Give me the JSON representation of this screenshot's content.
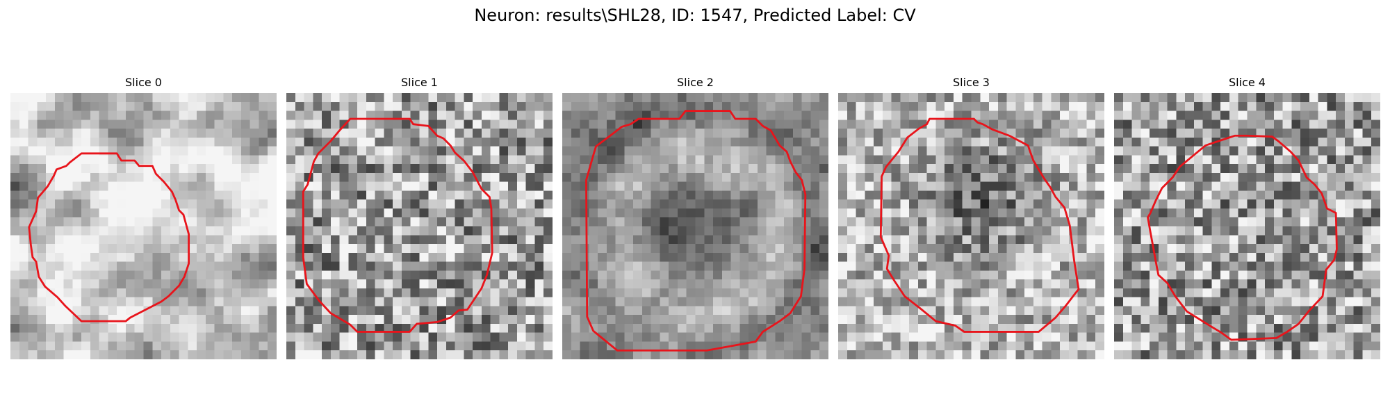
{
  "figure": {
    "title": "Neuron: results\\SHL28, ID: 1547, Predicted Label: CV",
    "contour_color": "#e8141b",
    "image_colormap": "grayscale",
    "slices": [
      {
        "label": "Slice 0",
        "pattern": "soft-blobs"
      },
      {
        "label": "Slice 1",
        "pattern": "noisy"
      },
      {
        "label": "Slice 2",
        "pattern": "ring"
      },
      {
        "label": "Slice 3",
        "pattern": "dark-center"
      },
      {
        "label": "Slice 4",
        "pattern": "noisy"
      }
    ]
  }
}
